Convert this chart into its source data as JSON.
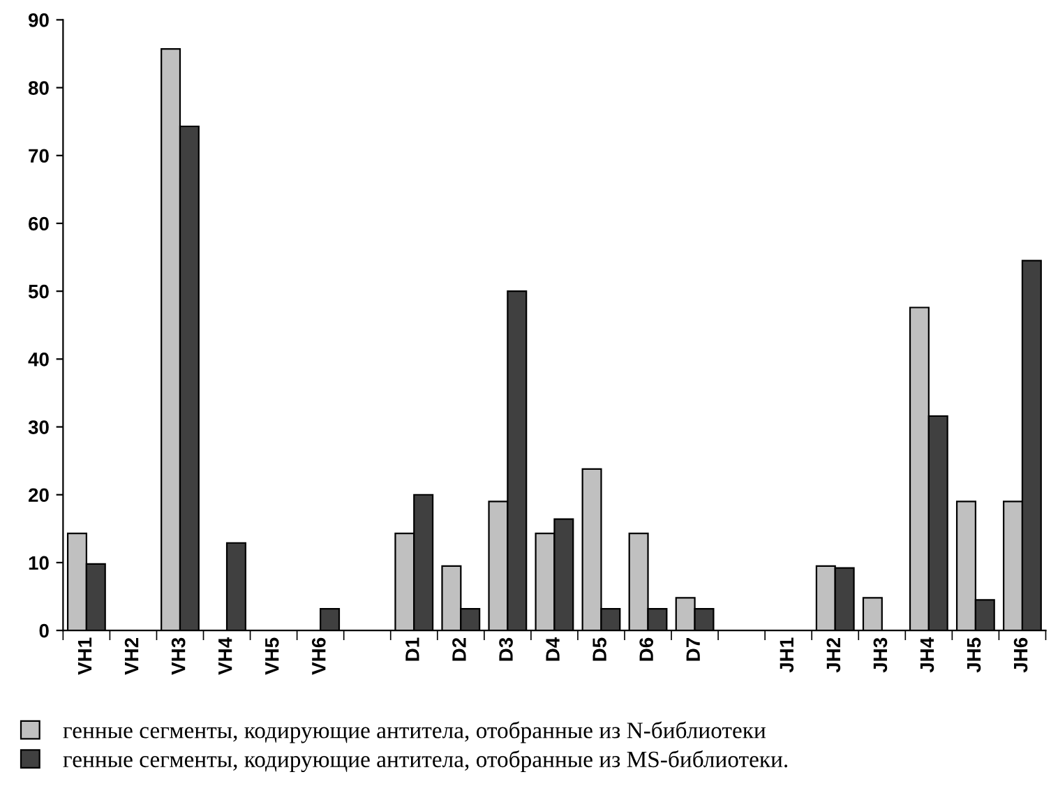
{
  "chart_data": {
    "type": "bar",
    "categories": [
      "VH1",
      "VH2",
      "VH3",
      "VH4",
      "VH5",
      "VH6",
      null,
      "D1",
      "D2",
      "D3",
      "D4",
      "D5",
      "D6",
      "D7",
      null,
      "JH1",
      "JH2",
      "JH3",
      "JH4",
      "JH5",
      "JH6"
    ],
    "series": [
      {
        "name": "генные сегменты, кодирующие антитела, отобранные из N-библиотеки",
        "color": "#c0c0c0",
        "values": [
          14.3,
          0,
          85.7,
          0,
          0,
          0,
          null,
          14.3,
          9.5,
          19,
          14.3,
          23.8,
          14.3,
          4.8,
          null,
          0,
          9.5,
          4.8,
          47.6,
          19,
          19
        ]
      },
      {
        "name": "генные сегменты, кодирующие антитела, отобранные из MS-библиотеки.",
        "color": "#404040",
        "values": [
          9.8,
          0,
          74.3,
          12.9,
          0,
          3.2,
          null,
          20,
          3.2,
          50,
          16.4,
          3.2,
          3.2,
          3.2,
          null,
          0,
          9.2,
          0,
          31.6,
          4.5,
          54.5
        ]
      }
    ],
    "ylim": [
      0,
      90
    ],
    "yticks": [
      0,
      10,
      20,
      30,
      40,
      50,
      60,
      70,
      80,
      90
    ],
    "grid": false,
    "legend": "bottom"
  }
}
